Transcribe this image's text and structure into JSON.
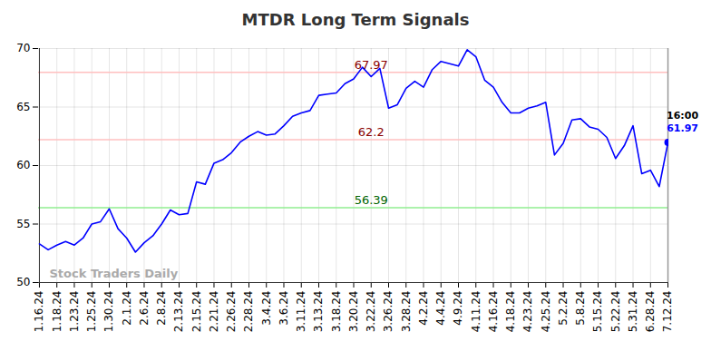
{
  "chart_data": {
    "type": "line",
    "title": "MTDR Long Term Signals",
    "categories": [
      "1.16.24",
      null,
      "1.18.24",
      null,
      "1.23.24",
      null,
      "1.25.24",
      null,
      "1.30.24",
      null,
      "2.1.24",
      null,
      "2.6.24",
      null,
      "2.8.24",
      null,
      "2.13.24",
      null,
      "2.15.24",
      null,
      "2.21.24",
      null,
      "2.26.24",
      null,
      "2.28.24",
      null,
      "3.4.24",
      null,
      "3.6.24",
      null,
      "3.11.24",
      null,
      "3.13.24",
      null,
      "3.18.24",
      null,
      "3.20.24",
      null,
      "3.22.24",
      null,
      "3.26.24",
      null,
      "3.28.24",
      null,
      "4.2.24",
      null,
      "4.4.24",
      null,
      "4.9.24",
      null,
      "4.11.24",
      null,
      "4.16.24",
      null,
      "4.18.24",
      null,
      "4.23.24",
      null,
      "4.25.24",
      null,
      "5.2.24",
      null,
      "5.8.24",
      null,
      "5.15.24",
      null,
      "5.22.24",
      null,
      "5.31.24",
      null,
      "6.28.24",
      null,
      "7.12.24"
    ],
    "values": [
      53.3,
      52.8,
      53.2,
      53.5,
      53.2,
      53.8,
      55.0,
      55.2,
      56.3,
      54.6,
      53.8,
      52.6,
      53.4,
      54.0,
      55.0,
      56.2,
      55.8,
      55.9,
      58.6,
      58.4,
      60.2,
      60.5,
      61.1,
      62.0,
      62.5,
      62.9,
      62.6,
      62.7,
      63.4,
      64.2,
      64.5,
      64.7,
      66.0,
      66.1,
      66.2,
      67.0,
      67.4,
      68.4,
      67.6,
      68.3,
      64.9,
      65.2,
      66.6,
      67.2,
      66.7,
      68.2,
      68.9,
      68.7,
      68.5,
      69.9,
      69.3,
      67.3,
      66.7,
      65.4,
      64.5,
      64.5,
      64.9,
      65.1,
      65.4,
      60.9,
      61.9,
      63.9,
      64.0,
      63.3,
      63.1,
      62.4,
      60.6,
      61.7,
      63.4,
      59.3,
      59.6,
      58.2,
      61.97
    ],
    "color": "#0000ff",
    "ylim": [
      50,
      70
    ],
    "yticks": [
      50,
      55,
      60,
      65,
      70
    ],
    "grid": true,
    "reference_lines": [
      {
        "value": 67.97,
        "color": "#8b0000"
      },
      {
        "value": 62.2,
        "color": "#8b0000"
      },
      {
        "value": 56.39,
        "color": "#006400"
      }
    ],
    "time_label": "16:00",
    "watermark": "Stock Traders Daily"
  }
}
